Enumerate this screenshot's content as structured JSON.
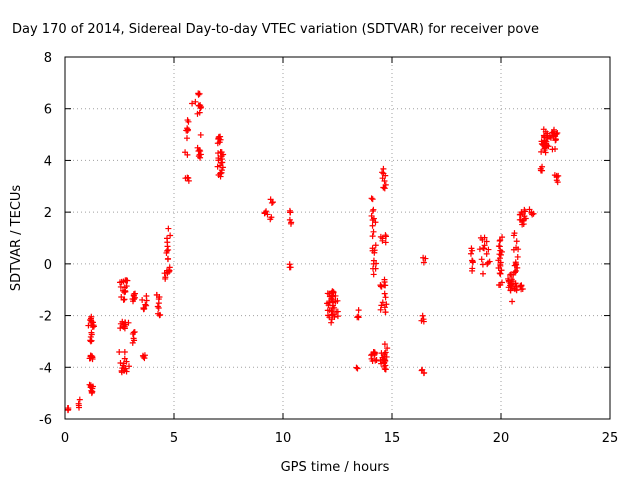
{
  "chart_data": {
    "type": "scatter",
    "title": "Day 170 of 2014, Sidereal Day-to-day VTEC variation (SDTVAR) for receiver pove",
    "xlabel": "GPS time / hours",
    "ylabel": "SDTVAR / TECUs",
    "xlim": [
      0,
      25
    ],
    "ylim": [
      -6,
      8
    ],
    "xticks": [
      0,
      5,
      10,
      15,
      20,
      25
    ],
    "yticks": [
      -6,
      -4,
      -2,
      0,
      2,
      4,
      6,
      8
    ],
    "grid": true,
    "marker": "+",
    "color": "#ff0000",
    "clusters": [
      {
        "x0": 0.05,
        "x1": 0.2,
        "y0": -5.7,
        "y1": -5.55,
        "n": 4
      },
      {
        "x0": 0.6,
        "x1": 0.7,
        "y0": -5.6,
        "y1": -5.2,
        "n": 4
      },
      {
        "x0": 1.05,
        "x1": 1.35,
        "y0": -5.0,
        "y1": -4.6,
        "n": 10
      },
      {
        "x0": 1.05,
        "x1": 1.35,
        "y0": -3.7,
        "y1": -3.5,
        "n": 8
      },
      {
        "x0": 1.05,
        "x1": 1.35,
        "y0": -3.0,
        "y1": -2.0,
        "n": 18
      },
      {
        "x0": 2.45,
        "x1": 2.95,
        "y0": -4.2,
        "y1": -3.4,
        "n": 16
      },
      {
        "x0": 2.45,
        "x1": 2.95,
        "y0": -2.5,
        "y1": -2.2,
        "n": 12
      },
      {
        "x0": 2.45,
        "x1": 2.95,
        "y0": -1.4,
        "y1": -0.6,
        "n": 16
      },
      {
        "x0": 3.05,
        "x1": 3.25,
        "y0": -3.1,
        "y1": -2.6,
        "n": 6
      },
      {
        "x0": 3.05,
        "x1": 3.25,
        "y0": -1.5,
        "y1": -1.1,
        "n": 8
      },
      {
        "x0": 3.55,
        "x1": 3.75,
        "y0": -3.8,
        "y1": -3.5,
        "n": 4
      },
      {
        "x0": 3.5,
        "x1": 3.8,
        "y0": -1.8,
        "y1": -1.2,
        "n": 8
      },
      {
        "x0": 4.15,
        "x1": 4.4,
        "y0": -2.0,
        "y1": -1.2,
        "n": 10
      },
      {
        "x0": 4.55,
        "x1": 4.85,
        "y0": -0.6,
        "y1": 1.4,
        "n": 20
      },
      {
        "x0": 5.5,
        "x1": 5.7,
        "y0": 3.2,
        "y1": 3.4,
        "n": 4
      },
      {
        "x0": 5.5,
        "x1": 5.7,
        "y0": 4.2,
        "y1": 5.7,
        "n": 10
      },
      {
        "x0": 5.8,
        "x1": 6.0,
        "y0": 6.2,
        "y1": 6.4,
        "n": 2
      },
      {
        "x0": 6.0,
        "x1": 6.35,
        "y0": 4.1,
        "y1": 4.5,
        "n": 8
      },
      {
        "x0": 6.05,
        "x1": 6.3,
        "y0": 5.5,
        "y1": 6.6,
        "n": 10
      },
      {
        "x0": 6.1,
        "x1": 6.3,
        "y0": 4.9,
        "y1": 5.0,
        "n": 1
      },
      {
        "x0": 6.95,
        "x1": 7.3,
        "y0": 3.3,
        "y1": 4.4,
        "n": 20
      },
      {
        "x0": 6.95,
        "x1": 7.25,
        "y0": 4.6,
        "y1": 5.0,
        "n": 8
      },
      {
        "x0": 9.1,
        "x1": 9.3,
        "y0": 1.9,
        "y1": 2.1,
        "n": 4
      },
      {
        "x0": 9.4,
        "x1": 9.5,
        "y0": 1.7,
        "y1": 1.9,
        "n": 2
      },
      {
        "x0": 9.4,
        "x1": 9.55,
        "y0": 2.3,
        "y1": 2.55,
        "n": 3
      },
      {
        "x0": 10.25,
        "x1": 10.4,
        "y0": 1.3,
        "y1": 2.1,
        "n": 6
      },
      {
        "x0": 10.25,
        "x1": 10.4,
        "y0": -0.15,
        "y1": 0.0,
        "n": 3
      },
      {
        "x0": 11.95,
        "x1": 12.6,
        "y0": -2.3,
        "y1": -1.0,
        "n": 40
      },
      {
        "x0": 13.35,
        "x1": 13.45,
        "y0": -4.05,
        "y1": -3.95,
        "n": 2
      },
      {
        "x0": 13.4,
        "x1": 13.5,
        "y0": -2.2,
        "y1": -1.6,
        "n": 4
      },
      {
        "x0": 14.0,
        "x1": 14.3,
        "y0": -3.8,
        "y1": -3.4,
        "n": 12
      },
      {
        "x0": 14.0,
        "x1": 14.3,
        "y0": -0.6,
        "y1": 2.6,
        "n": 22
      },
      {
        "x0": 14.45,
        "x1": 14.8,
        "y0": -4.1,
        "y1": -3.1,
        "n": 22
      },
      {
        "x0": 14.45,
        "x1": 14.8,
        "y0": -1.9,
        "y1": -0.6,
        "n": 16
      },
      {
        "x0": 14.45,
        "x1": 14.8,
        "y0": 0.8,
        "y1": 1.2,
        "n": 6
      },
      {
        "x0": 14.45,
        "x1": 14.8,
        "y0": 2.9,
        "y1": 3.7,
        "n": 10
      },
      {
        "x0": 16.35,
        "x1": 16.5,
        "y0": -4.3,
        "y1": -4.0,
        "n": 4
      },
      {
        "x0": 16.35,
        "x1": 16.5,
        "y0": -2.4,
        "y1": -2.0,
        "n": 4
      },
      {
        "x0": 16.4,
        "x1": 16.55,
        "y0": 0.05,
        "y1": 0.25,
        "n": 3
      },
      {
        "x0": 18.6,
        "x1": 18.75,
        "y0": -0.3,
        "y1": 0.7,
        "n": 8
      },
      {
        "x0": 19.0,
        "x1": 19.5,
        "y0": -0.4,
        "y1": 1.4,
        "n": 16
      },
      {
        "x0": 19.85,
        "x1": 20.1,
        "y0": -1.0,
        "y1": 1.1,
        "n": 22
      },
      {
        "x0": 20.3,
        "x1": 20.6,
        "y0": -1.5,
        "y1": -0.2,
        "n": 16
      },
      {
        "x0": 20.5,
        "x1": 20.8,
        "y0": -1.1,
        "y1": 1.3,
        "n": 22
      },
      {
        "x0": 20.7,
        "x1": 21.1,
        "y0": -1.0,
        "y1": -0.8,
        "n": 8
      },
      {
        "x0": 20.8,
        "x1": 21.2,
        "y0": 1.5,
        "y1": 2.3,
        "n": 14
      },
      {
        "x0": 21.3,
        "x1": 21.5,
        "y0": 1.9,
        "y1": 2.2,
        "n": 5
      },
      {
        "x0": 21.75,
        "x1": 21.95,
        "y0": 3.6,
        "y1": 3.9,
        "n": 4
      },
      {
        "x0": 21.8,
        "x1": 22.3,
        "y0": 4.3,
        "y1": 5.3,
        "n": 28
      },
      {
        "x0": 22.3,
        "x1": 22.6,
        "y0": 4.3,
        "y1": 5.2,
        "n": 14
      },
      {
        "x0": 22.45,
        "x1": 22.65,
        "y0": 3.1,
        "y1": 3.6,
        "n": 6
      }
    ]
  }
}
